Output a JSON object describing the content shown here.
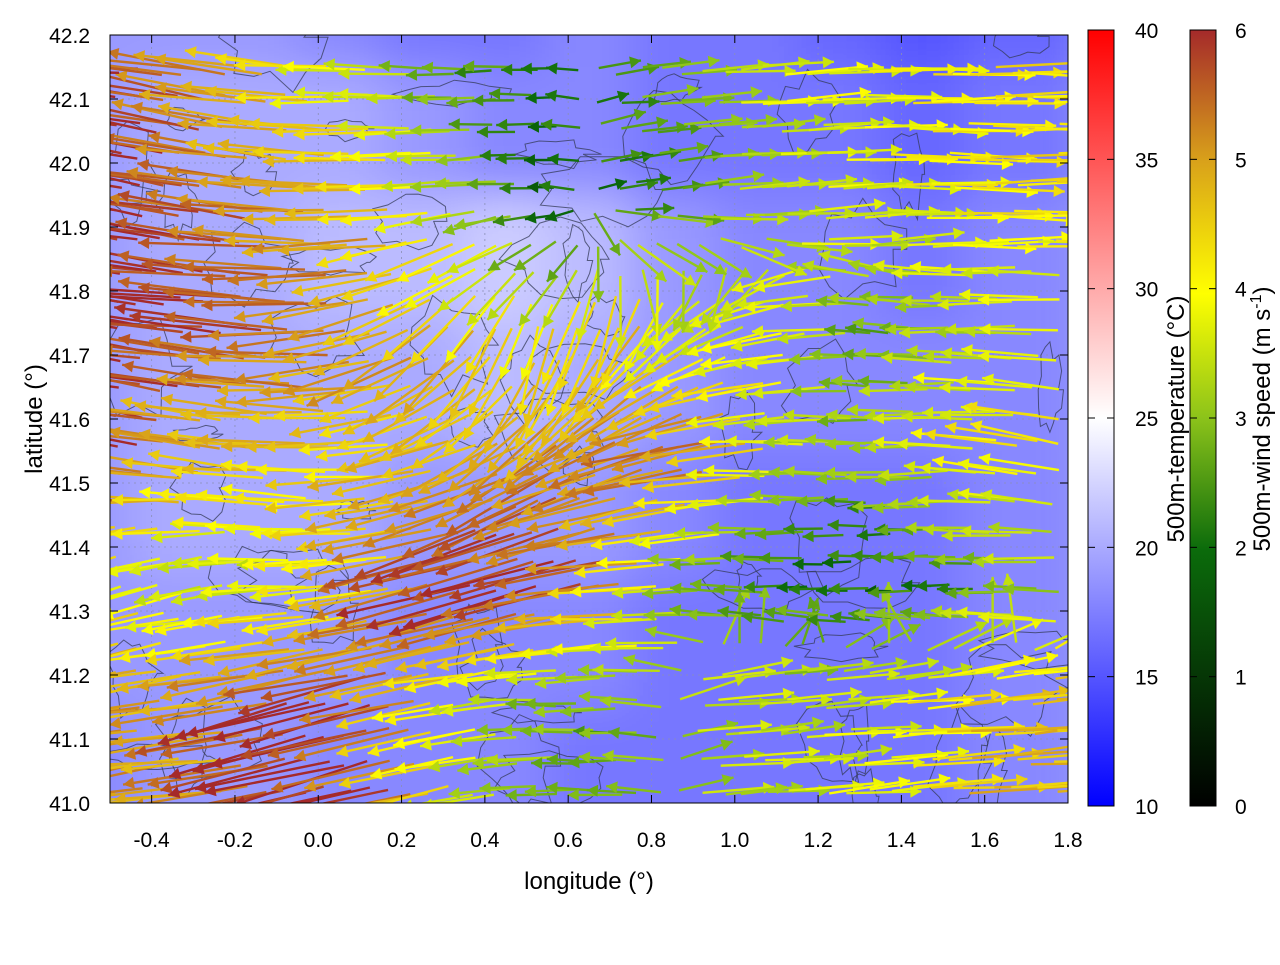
{
  "chart_data": {
    "type": "heatmap",
    "title": "",
    "xlabel": "longitude (°)",
    "ylabel": "latitude (°)",
    "xlim": [
      -0.5,
      1.8
    ],
    "ylim": [
      41.0,
      42.2
    ],
    "x_ticks": [
      "-0.4",
      "-0.2",
      "0.0",
      "0.2",
      "0.4",
      "0.6",
      "0.8",
      "1.0",
      "1.2",
      "1.4",
      "1.6",
      "1.8"
    ],
    "x_tick_values": [
      -0.4,
      -0.2,
      0.0,
      0.2,
      0.4,
      0.6,
      0.8,
      1.0,
      1.2,
      1.4,
      1.6,
      1.8
    ],
    "y_ticks": [
      "41.0",
      "41.1",
      "41.2",
      "41.3",
      "41.4",
      "41.5",
      "41.6",
      "41.7",
      "41.8",
      "41.9",
      "42.0",
      "42.1",
      "42.2"
    ],
    "y_tick_values": [
      41.0,
      41.1,
      41.2,
      41.3,
      41.4,
      41.5,
      41.6,
      41.7,
      41.8,
      41.9,
      42.0,
      42.1,
      42.2
    ],
    "grid": true,
    "temperature_colorbar": {
      "label": "500m-temperature (°C)",
      "range": [
        10,
        40
      ],
      "ticks": [
        "10",
        "15",
        "20",
        "25",
        "30",
        "35",
        "40"
      ],
      "tick_values": [
        10,
        15,
        20,
        25,
        30,
        35,
        40
      ],
      "colors": [
        "#0000ff",
        "#ffffff",
        "#ff0000"
      ]
    },
    "wind_colorbar": {
      "label": "500m-wind speed (m s-1)",
      "label_main": "500m-wind speed (m s",
      "label_sup": "-1",
      "label_end": ")",
      "range": [
        0,
        6
      ],
      "ticks": [
        "0",
        "1",
        "2",
        "3",
        "4",
        "5",
        "6"
      ],
      "tick_values": [
        0,
        1,
        2,
        3,
        4,
        5,
        6
      ],
      "colors": [
        "#000000",
        "#0b6b0b",
        "#8cc31a",
        "#ffff00",
        "#d9a21a",
        "#a52a2a"
      ]
    },
    "temperature_field": {
      "x": [
        -0.5,
        -0.3,
        -0.1,
        0.1,
        0.3,
        0.5,
        0.7,
        0.9,
        1.1,
        1.3,
        1.5,
        1.7
      ],
      "y": [
        42.2,
        42.0,
        41.8,
        41.6,
        41.4,
        41.2,
        41.0
      ],
      "values": [
        [
          19,
          19,
          19,
          18,
          17,
          17,
          18,
          17,
          17,
          16,
          15,
          16
        ],
        [
          19,
          20,
          20,
          20,
          19,
          18,
          18,
          17,
          17,
          17,
          16,
          17
        ],
        [
          19,
          20,
          20,
          21,
          21,
          22,
          21,
          19,
          18,
          18,
          17,
          18
        ],
        [
          19,
          20,
          20,
          20,
          20,
          21,
          20,
          19,
          18,
          18,
          18,
          18
        ],
        [
          19,
          20,
          20,
          20,
          19,
          19,
          19,
          18,
          17,
          17,
          17,
          18
        ],
        [
          19,
          19,
          19,
          19,
          18,
          18,
          18,
          17,
          17,
          17,
          17,
          18
        ],
        [
          18,
          19,
          19,
          18,
          18,
          18,
          17,
          17,
          17,
          17,
          17,
          18
        ]
      ]
    },
    "wind_field": {
      "x": [
        -0.45,
        -0.25,
        -0.05,
        0.15,
        0.35,
        0.55,
        0.75,
        0.95,
        1.15,
        1.35,
        1.55,
        1.75
      ],
      "y": [
        42.15,
        41.95,
        41.75,
        41.55,
        41.35,
        41.15
      ],
      "speed": [
        [
          6.0,
          5.0,
          4.0,
          3.0,
          2.0,
          1.5,
          2.0,
          3.0,
          3.5,
          3.5,
          4.0,
          4.0
        ],
        [
          6.0,
          5.5,
          5.0,
          4.5,
          3.0,
          1.0,
          1.5,
          2.5,
          3.0,
          3.5,
          4.0,
          4.0
        ],
        [
          6.0,
          6.0,
          5.5,
          5.0,
          4.5,
          4.0,
          4.5,
          3.0,
          3.5,
          2.0,
          2.5,
          3.0
        ],
        [
          6.0,
          4.5,
          4.5,
          4.0,
          4.5,
          5.0,
          5.0,
          5.5,
          3.0,
          2.5,
          3.5,
          4.0
        ],
        [
          3.5,
          3.0,
          3.0,
          4.0,
          6.0,
          6.0,
          5.0,
          2.0,
          1.5,
          1.0,
          1.5,
          2.5
        ],
        [
          5.0,
          4.5,
          6.0,
          6.0,
          3.5,
          2.5,
          2.0,
          3.0,
          3.0,
          3.5,
          4.5,
          4.5
        ]
      ],
      "direction_to_deg": [
        [
          175,
          170,
          175,
          180,
          180,
          180,
          5,
          5,
          5,
          0,
          0,
          0
        ],
        [
          170,
          170,
          175,
          180,
          185,
          180,
          5,
          5,
          5,
          0,
          0,
          0
        ],
        [
          172,
          175,
          178,
          195,
          230,
          260,
          240,
          210,
          190,
          175,
          180,
          180
        ],
        [
          170,
          170,
          175,
          180,
          200,
          210,
          200,
          190,
          180,
          180,
          180,
          170
        ],
        [
          200,
          190,
          180,
          190,
          195,
          195,
          185,
          180,
          180,
          180,
          180,
          180
        ],
        [
          190,
          185,
          195,
          195,
          190,
          180,
          180,
          5,
          5,
          5,
          5,
          5
        ]
      ]
    },
    "contours": "terrain isolines (unlabelled)"
  }
}
